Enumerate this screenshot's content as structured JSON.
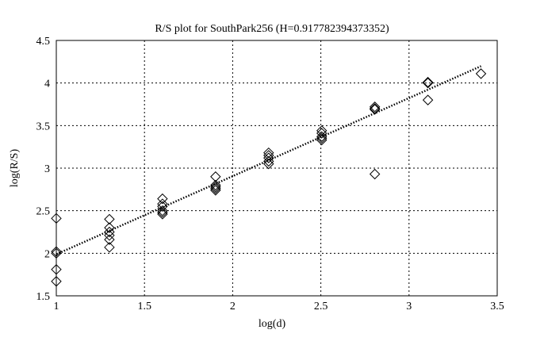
{
  "chart_data": {
    "type": "scatter",
    "title": "R/S plot for SouthPark256 (H=0.917782394373352)",
    "xlabel": "log(d)",
    "ylabel": "log(R/S)",
    "xlim": [
      1,
      3.5
    ],
    "ylim": [
      1.5,
      4.5
    ],
    "xticks": [
      "1",
      "1.5",
      "2",
      "2.5",
      "3",
      "3.5"
    ],
    "yticks": [
      "1.5",
      "2",
      "2.5",
      "3",
      "3.5",
      "4",
      "4.5"
    ],
    "grid": true,
    "marker": "diamond",
    "points": [
      [
        1.0,
        2.41
      ],
      [
        1.0,
        2.02
      ],
      [
        1.0,
        2.0
      ],
      [
        1.0,
        1.81
      ],
      [
        1.0,
        1.67
      ],
      [
        1.301,
        2.4
      ],
      [
        1.301,
        2.3
      ],
      [
        1.301,
        2.25
      ],
      [
        1.301,
        2.21
      ],
      [
        1.301,
        2.16
      ],
      [
        1.301,
        2.07
      ],
      [
        1.602,
        2.64
      ],
      [
        1.602,
        2.58
      ],
      [
        1.602,
        2.55
      ],
      [
        1.602,
        2.5
      ],
      [
        1.602,
        2.48
      ],
      [
        1.602,
        2.46
      ],
      [
        1.903,
        2.9
      ],
      [
        1.903,
        2.8
      ],
      [
        1.903,
        2.78
      ],
      [
        1.903,
        2.76
      ],
      [
        1.903,
        2.74
      ],
      [
        2.204,
        3.18
      ],
      [
        2.204,
        3.15
      ],
      [
        2.204,
        3.12
      ],
      [
        2.204,
        3.08
      ],
      [
        2.204,
        3.05
      ],
      [
        2.505,
        3.44
      ],
      [
        2.505,
        3.41
      ],
      [
        2.505,
        3.37
      ],
      [
        2.505,
        3.35
      ],
      [
        2.505,
        3.33
      ],
      [
        2.806,
        3.72
      ],
      [
        2.806,
        3.7
      ],
      [
        2.806,
        3.69
      ],
      [
        2.806,
        2.93
      ],
      [
        3.107,
        4.01
      ],
      [
        3.107,
        4.0
      ],
      [
        3.107,
        3.8
      ],
      [
        3.408,
        4.11
      ]
    ],
    "fit_line": {
      "slope": 0.917782394373352,
      "intercept": 1.07,
      "x_range": [
        1.0,
        3.408
      ],
      "style": "dotted"
    }
  }
}
